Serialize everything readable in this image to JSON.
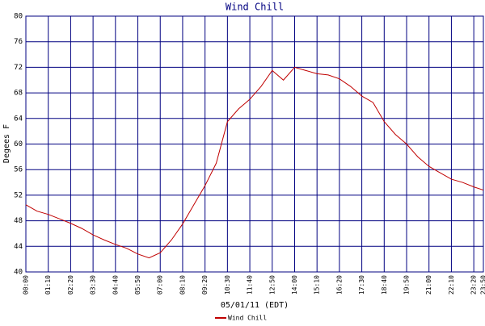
{
  "chart_data": {
    "type": "line",
    "title": "Wind Chill",
    "x_label": "05/01/11 (EDT)",
    "y_label": "Degees F",
    "x": [
      "00:00",
      "00:35",
      "01:10",
      "01:45",
      "02:20",
      "02:55",
      "03:30",
      "04:05",
      "04:40",
      "05:15",
      "05:50",
      "06:25",
      "07:00",
      "07:35",
      "08:10",
      "08:45",
      "09:20",
      "09:55",
      "10:30",
      "11:05",
      "11:40",
      "12:15",
      "12:50",
      "13:25",
      "14:00",
      "14:35",
      "15:10",
      "15:45",
      "16:20",
      "16:55",
      "17:30",
      "18:05",
      "18:40",
      "19:15",
      "19:50",
      "20:25",
      "21:00",
      "21:35",
      "22:10",
      "22:45",
      "23:20",
      "23:50"
    ],
    "series": [
      {
        "name": "Wind Chill",
        "color": "#c00000",
        "values": [
          50.5,
          49.5,
          49.0,
          48.3,
          47.6,
          46.8,
          45.8,
          45.0,
          44.3,
          43.7,
          42.8,
          42.2,
          43.0,
          45.0,
          47.5,
          50.5,
          53.5,
          57.0,
          63.5,
          65.5,
          67.0,
          69.0,
          71.5,
          70.0,
          72.0,
          71.5,
          71.0,
          70.8,
          70.2,
          69.0,
          67.5,
          66.5,
          63.5,
          61.5,
          60.0,
          58.0,
          56.5,
          55.5,
          54.5,
          54.0,
          53.3,
          52.8
        ]
      }
    ],
    "xticks": [
      "00:00",
      "01:10",
      "02:20",
      "03:30",
      "04:40",
      "05:50",
      "07:00",
      "08:10",
      "09:20",
      "10:30",
      "11:40",
      "12:50",
      "14:00",
      "15:10",
      "16:20",
      "17:30",
      "18:40",
      "19:50",
      "21:00",
      "22:10",
      "23:20",
      "23:50"
    ],
    "ylim": [
      40,
      80
    ],
    "yticks": [
      40,
      44,
      48,
      52,
      56,
      60,
      64,
      68,
      72,
      76,
      80
    ],
    "grid": true,
    "grid_color": "#000080",
    "legend": "bottom"
  }
}
